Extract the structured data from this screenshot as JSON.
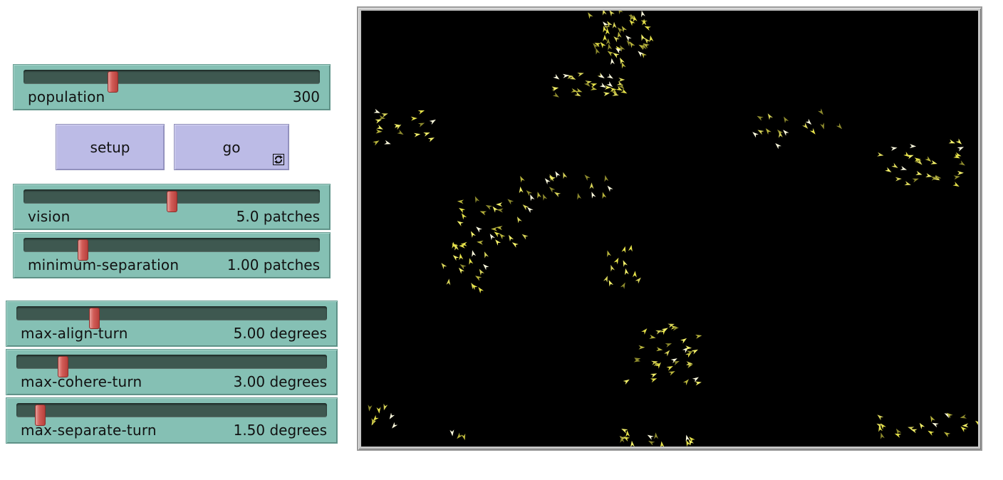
{
  "sliders": {
    "population": {
      "label": "population",
      "value_text": "300",
      "fraction": 0.3
    },
    "vision": {
      "label": "vision",
      "value_text": "5.0 patches",
      "fraction": 0.5
    },
    "minimum_separation": {
      "label": "minimum-separation",
      "value_text": "1.00 patches",
      "fraction": 0.2
    },
    "max_align_turn": {
      "label": "max-align-turn",
      "value_text": "5.00 degrees",
      "fraction": 0.25
    },
    "max_cohere_turn": {
      "label": "max-cohere-turn",
      "value_text": "3.00 degrees",
      "fraction": 0.15
    },
    "max_separate_turn": {
      "label": "max-separate-turn",
      "value_text": "1.50 degrees",
      "fraction": 0.075
    }
  },
  "buttons": {
    "setup": {
      "label": "setup"
    },
    "go": {
      "label": "go",
      "forever": true
    }
  },
  "world": {
    "background": "#000000",
    "turtle_shape": "arrowhead",
    "turtle_colors": [
      "#f5f26a",
      "#e6e24a",
      "#fffde0",
      "#b9b53c",
      "#8f8c2e",
      "#d8d45a"
    ],
    "flocks": [
      [
        0.42,
        0.05,
        60,
        0.05,
        0.08
      ],
      [
        0.38,
        0.17,
        30,
        0.07,
        0.025
      ],
      [
        0.07,
        0.27,
        18,
        0.05,
        0.04
      ],
      [
        0.66,
        0.28,
        10,
        0.03,
        0.04
      ],
      [
        0.75,
        0.25,
        6,
        0.03,
        0.03
      ],
      [
        0.91,
        0.35,
        30,
        0.07,
        0.05
      ],
      [
        0.33,
        0.4,
        20,
        0.08,
        0.03
      ],
      [
        0.22,
        0.49,
        28,
        0.06,
        0.06
      ],
      [
        0.17,
        0.59,
        18,
        0.04,
        0.06
      ],
      [
        0.42,
        0.59,
        12,
        0.03,
        0.05
      ],
      [
        0.49,
        0.79,
        36,
        0.06,
        0.07
      ],
      [
        0.03,
        0.93,
        8,
        0.025,
        0.025
      ],
      [
        0.16,
        0.97,
        3,
        0.015,
        0.01
      ],
      [
        0.48,
        0.98,
        14,
        0.06,
        0.02
      ],
      [
        0.9,
        0.95,
        16,
        0.06,
        0.035
      ],
      [
        0.99,
        0.95,
        5,
        0.015,
        0.02
      ]
    ]
  }
}
